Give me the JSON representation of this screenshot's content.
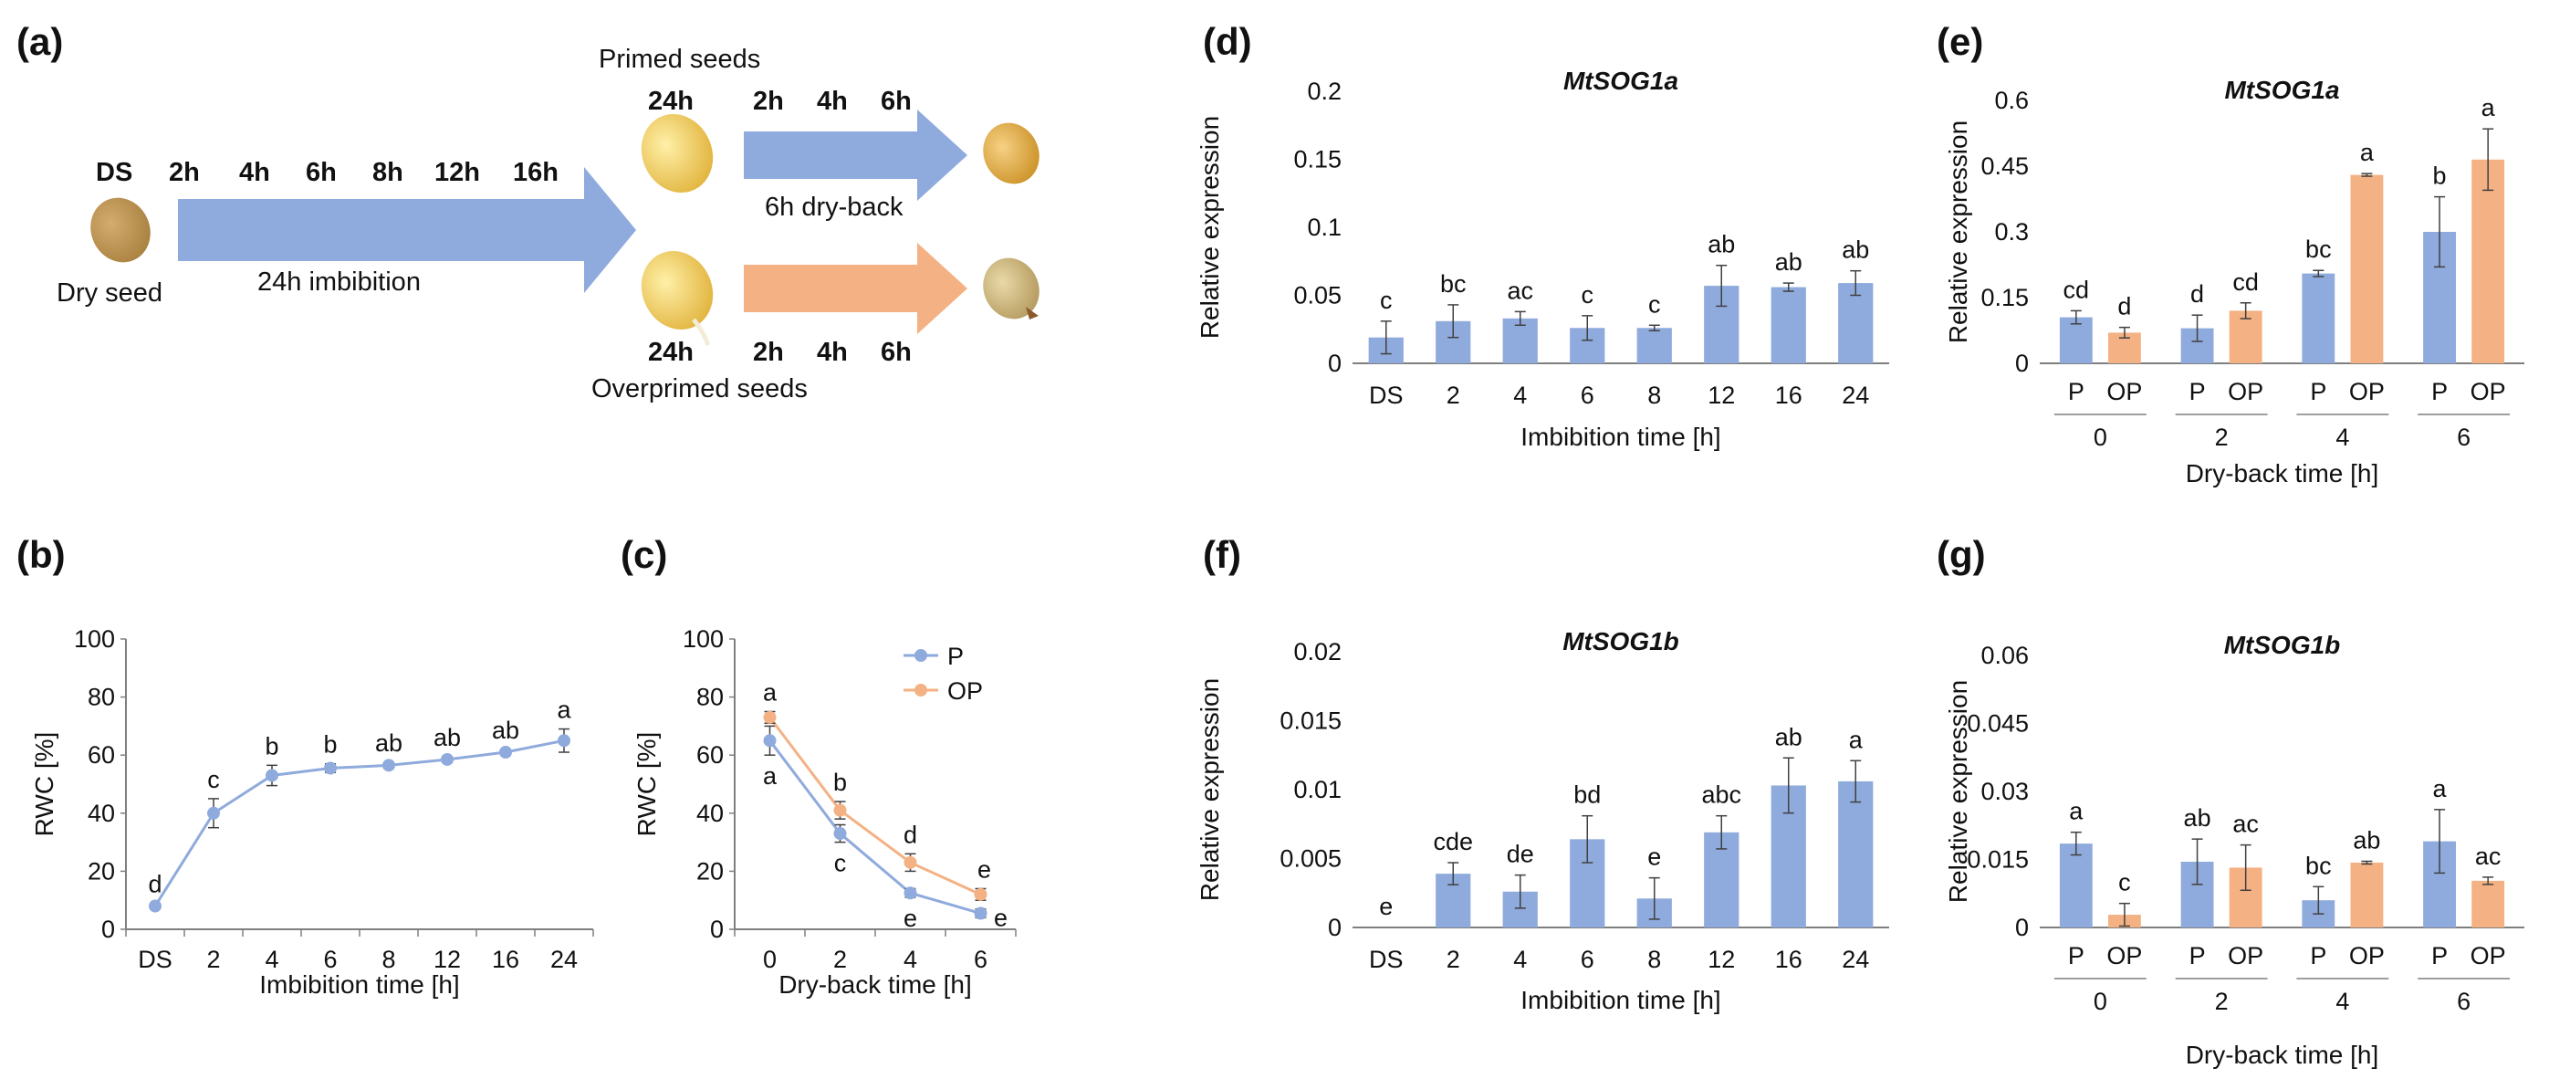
{
  "colors": {
    "primed": "#8faadc",
    "overprimed": "#f4b183",
    "axis": "#7f7f7f",
    "error": "#404040"
  },
  "schematic": {
    "panel_label": "(a)",
    "ds_label": "DS",
    "imbibition_times": [
      "2h",
      "4h",
      "6h",
      "8h",
      "12h",
      "16h"
    ],
    "dry_seed_label": "Dry seed",
    "imbibition_label": "24h imbibition",
    "primed_label": "Primed seeds",
    "overprimed_label": "Overprimed seeds",
    "primed_24h": "24h",
    "overprimed_24h": "24h",
    "dryback_times_top": [
      "2h",
      "4h",
      "6h"
    ],
    "dryback_times_bottom": [
      "2h",
      "4h",
      "6h"
    ],
    "dryback_label": "6h dry-back"
  },
  "chart_data": [
    {
      "id": "b",
      "panel_label": "(b)",
      "type": "line",
      "title": "",
      "categories": [
        "DS",
        "2",
        "4",
        "6",
        "8",
        "12",
        "16",
        "24"
      ],
      "xlabel": "Imbibition time [h]",
      "ylabel": "RWC [%]",
      "ylim": [
        0,
        100
      ],
      "yticks": [
        "0",
        "20",
        "40",
        "60",
        "80",
        "100"
      ],
      "series": [
        {
          "name": "RWC",
          "color_key": "primed",
          "values": [
            8,
            40,
            53,
            55.5,
            56.5,
            58.5,
            61,
            65
          ],
          "errors": [
            1,
            5,
            3.5,
            1.5,
            1,
            1,
            1,
            4
          ],
          "letters": [
            "d",
            "c",
            "b",
            "b",
            "ab",
            "ab",
            "ab",
            "a"
          ]
        }
      ]
    },
    {
      "id": "c",
      "panel_label": "(c)",
      "type": "line",
      "title": "",
      "categories": [
        "0",
        "2",
        "4",
        "6"
      ],
      "xlabel": "Dry-back time [h]",
      "ylabel": "RWC [%]",
      "ylim": [
        0,
        100
      ],
      "yticks": [
        "0",
        "20",
        "40",
        "60",
        "80",
        "100"
      ],
      "legend": [
        "P",
        "OP"
      ],
      "series": [
        {
          "name": "P",
          "color_key": "primed",
          "values": [
            65,
            33,
            12.5,
            5.5
          ],
          "errors": [
            5,
            3,
            1.5,
            1.5
          ],
          "letters": [
            "a",
            "c",
            "e",
            "e"
          ]
        },
        {
          "name": "OP",
          "color_key": "overprimed",
          "values": [
            73,
            41,
            23,
            12
          ],
          "errors": [
            2,
            3,
            3,
            2
          ],
          "letters": [
            "a",
            "b",
            "d",
            "e"
          ]
        }
      ]
    },
    {
      "id": "d",
      "panel_label": "(d)",
      "type": "bar",
      "title": "MtSOG1a",
      "categories": [
        "DS",
        "2",
        "4",
        "6",
        "8",
        "12",
        "16",
        "24"
      ],
      "xlabel": "Imbibition time [h]",
      "ylabel": "Relative expression",
      "ylim": [
        0,
        0.2
      ],
      "yticks": [
        "0",
        "0.05",
        "0.1",
        "0.15",
        "0.2"
      ],
      "series": [
        {
          "name": "MtSOG1a",
          "color_key": "primed",
          "values": [
            0.019,
            0.031,
            0.033,
            0.026,
            0.026,
            0.057,
            0.056,
            0.059
          ],
          "errors": [
            0.012,
            0.012,
            0.005,
            0.009,
            0.002,
            0.015,
            0.003,
            0.009
          ],
          "letters": [
            "c",
            "bc",
            "ac",
            "c",
            "c",
            "ab",
            "ab",
            "ab"
          ]
        }
      ]
    },
    {
      "id": "e",
      "panel_label": "(e)",
      "type": "bar",
      "title": "MtSOG1a",
      "groups": [
        "0",
        "2",
        "4",
        "6"
      ],
      "subcategories": [
        "P",
        "OP"
      ],
      "xlabel": "Dry-back time [h]",
      "ylabel": "Relative expression",
      "ylim": [
        0,
        0.6
      ],
      "yticks": [
        "0",
        "0.15",
        "0.3",
        "0.45",
        "0.6"
      ],
      "series": [
        {
          "name": "P",
          "color_key": "primed",
          "values": [
            0.105,
            0.08,
            0.205,
            0.3
          ],
          "errors": [
            0.015,
            0.03,
            0.007,
            0.08
          ],
          "letters": [
            "cd",
            "d",
            "bc",
            "b"
          ]
        },
        {
          "name": "OP",
          "color_key": "overprimed",
          "values": [
            0.07,
            0.12,
            0.43,
            0.465
          ],
          "errors": [
            0.012,
            0.018,
            0.003,
            0.07
          ],
          "letters": [
            "d",
            "cd",
            "a",
            "a"
          ]
        }
      ]
    },
    {
      "id": "f",
      "panel_label": "(f)",
      "type": "bar",
      "title": "MtSOG1b",
      "categories": [
        "DS",
        "2",
        "4",
        "6",
        "8",
        "12",
        "16",
        "24"
      ],
      "xlabel": "Imbibition time [h]",
      "ylabel": "Relative expression",
      "ylim": [
        0,
        0.02
      ],
      "yticks": [
        "0",
        "0.005",
        "0.01",
        "0.015",
        "0.02"
      ],
      "series": [
        {
          "name": "MtSOG1b",
          "color_key": "primed",
          "values": [
            0,
            0.0039,
            0.0026,
            0.0064,
            0.0021,
            0.0069,
            0.0103,
            0.0106
          ],
          "errors": [
            0,
            0.0008,
            0.0012,
            0.0017,
            0.0015,
            0.0012,
            0.002,
            0.0015
          ],
          "letters": [
            "e",
            "cde",
            "de",
            "bd",
            "e",
            "abc",
            "ab",
            "a"
          ]
        }
      ]
    },
    {
      "id": "g",
      "panel_label": "(g)",
      "type": "bar",
      "title": "MtSOG1b",
      "groups": [
        "0",
        "2",
        "4",
        "6"
      ],
      "subcategories": [
        "P",
        "OP"
      ],
      "xlabel": "Dry-back time [h]",
      "ylabel": "Relative expression",
      "ylim": [
        0,
        0.06
      ],
      "yticks": [
        "0",
        "0.015",
        "0.03",
        "0.045",
        "0.06"
      ],
      "series": [
        {
          "name": "P",
          "color_key": "primed",
          "values": [
            0.0185,
            0.0145,
            0.006,
            0.019
          ],
          "errors": [
            0.0025,
            0.005,
            0.003,
            0.007
          ],
          "letters": [
            "a",
            "ab",
            "bc",
            "a"
          ]
        },
        {
          "name": "OP",
          "color_key": "overprimed",
          "values": [
            0.0028,
            0.0132,
            0.0143,
            0.0103
          ],
          "errors": [
            0.0025,
            0.005,
            0.0003,
            0.0008
          ],
          "letters": [
            "c",
            "ac",
            "ab",
            "ac"
          ]
        }
      ]
    }
  ]
}
